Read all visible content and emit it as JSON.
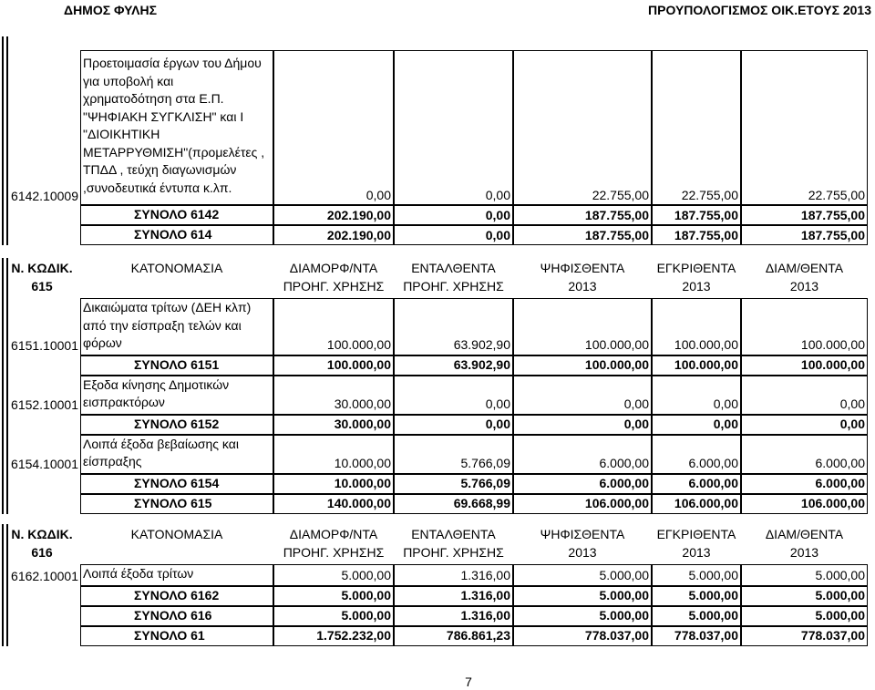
{
  "header": {
    "left": "ΔΗΜΟΣ ΦΥΛΗΣ",
    "right": "ΠΡΟΥΠΟΛΟΓΙΣΜΟΣ ΟΙΚ.ΕΤΟΥΣ 2013"
  },
  "sections": [
    {
      "rows": [
        {
          "code": "6142.10009",
          "description": "Προετοιμασία έργων του Δήμου\nγια υποβολή και\nχρηματοδότηση στα Ε.Π.\n\"ΨΗΦΙΑΚΗ ΣΥΓΚΛΙΣΗ\" και Ι\n\"ΔΙΟΙΚΗΤΙΚΗ\nΜΕΤΑΡΡΥΘΜΙΣΗ\"(προμελέτες ,\nΤΠΔΔ , τεύχη διαγωνισμών\n,συνοδευτικά  έντυπα κ.λπ.",
          "values": [
            "0,00",
            "0,00",
            "22.755,00",
            "22.755,00",
            "22.755,00"
          ]
        },
        {
          "label": "ΣΥΝΟΛΟ 6142",
          "values": [
            "202.190,00",
            "0,00",
            "187.755,00",
            "187.755,00",
            "187.755,00"
          ]
        },
        {
          "label": "ΣΥΝΟΛΟ 614",
          "values": [
            "202.190,00",
            "0,00",
            "187.755,00",
            "187.755,00",
            "187.755,00"
          ]
        }
      ]
    },
    {
      "columns": [
        {
          "top": "Ν. ΚΩΔΙΚ.",
          "bottom": "615"
        },
        {
          "top": "ΚΑΤΟΝΟΜΑΣΙΑ"
        },
        {
          "top": "ΔΙΑΜΟΡΦ/ΝΤΑ",
          "bottom": "ΠΡΟΗΓ. ΧΡΗΣΗΣ"
        },
        {
          "top": "ΕΝΤΑΛΘΕΝΤΑ",
          "bottom": "ΠΡΟΗΓ. ΧΡΗΣΗΣ"
        },
        {
          "top": "ΨΗΦΙΣΘΕΝΤΑ",
          "bottom": "2013"
        },
        {
          "top": "ΕΓΚΡΙΘΕΝΤΑ",
          "bottom": "2013"
        },
        {
          "top": "ΔΙΑΜ/ΘΕΝΤΑ",
          "bottom": "2013"
        }
      ],
      "rows": [
        {
          "code": "6151.10001",
          "description": "Δικαιώματα τρίτων (ΔΕΗ κλπ)\nαπό την είσπραξη τελών και\nφόρων",
          "values": [
            "100.000,00",
            "63.902,90",
            "100.000,00",
            "100.000,00",
            "100.000,00"
          ]
        },
        {
          "label": "ΣΥΝΟΛΟ 6151",
          "values": [
            "100.000,00",
            "63.902,90",
            "100.000,00",
            "100.000,00",
            "100.000,00"
          ]
        },
        {
          "code": "6152.10001",
          "description": "Εξοδα κίνησης Δημοτικών\nεισπρακτόρων",
          "values": [
            "30.000,00",
            "0,00",
            "0,00",
            "0,00",
            "0,00"
          ]
        },
        {
          "label": "ΣΥΝΟΛΟ 6152",
          "values": [
            "30.000,00",
            "0,00",
            "0,00",
            "0,00",
            "0,00"
          ]
        },
        {
          "code": "6154.10001",
          "description": "Λοιπά έξοδα βεβαίωσης και\nείσπραξης",
          "values": [
            "10.000,00",
            "5.766,09",
            "6.000,00",
            "6.000,00",
            "6.000,00"
          ]
        },
        {
          "label": "ΣΥΝΟΛΟ 6154",
          "values": [
            "10.000,00",
            "5.766,09",
            "6.000,00",
            "6.000,00",
            "6.000,00"
          ]
        },
        {
          "label": "ΣΥΝΟΛΟ 615",
          "values": [
            "140.000,00",
            "69.668,99",
            "106.000,00",
            "106.000,00",
            "106.000,00"
          ]
        }
      ]
    },
    {
      "columns": [
        {
          "top": "Ν. ΚΩΔΙΚ.",
          "bottom": "616"
        },
        {
          "top": "ΚΑΤΟΝΟΜΑΣΙΑ"
        },
        {
          "top": "ΔΙΑΜΟΡΦ/ΝΤΑ",
          "bottom": "ΠΡΟΗΓ. ΧΡΗΣΗΣ"
        },
        {
          "top": "ΕΝΤΑΛΘΕΝΤΑ",
          "bottom": "ΠΡΟΗΓ. ΧΡΗΣΗΣ"
        },
        {
          "top": "ΨΗΦΙΣΘΕΝΤΑ",
          "bottom": "2013"
        },
        {
          "top": "ΕΓΚΡΙΘΕΝΤΑ",
          "bottom": "2013"
        },
        {
          "top": "ΔΙΑΜ/ΘΕΝΤΑ",
          "bottom": "2013"
        }
      ],
      "rows": [
        {
          "code": "6162.10001",
          "description": "Λοιπά έξοδα τρίτων",
          "values": [
            "5.000,00",
            "1.316,00",
            "5.000,00",
            "5.000,00",
            "5.000,00"
          ]
        },
        {
          "label": "ΣΥΝΟΛΟ 6162",
          "values": [
            "5.000,00",
            "1.316,00",
            "5.000,00",
            "5.000,00",
            "5.000,00"
          ]
        },
        {
          "label": "ΣΥΝΟΛΟ 616",
          "values": [
            "5.000,00",
            "1.316,00",
            "5.000,00",
            "5.000,00",
            "5.000,00"
          ]
        },
        {
          "label": "ΣΥΝΟΛΟ 61",
          "values": [
            "1.752.232,00",
            "786.861,23",
            "778.037,00",
            "778.037,00",
            "778.037,00"
          ]
        }
      ]
    }
  ],
  "page_number": "7"
}
